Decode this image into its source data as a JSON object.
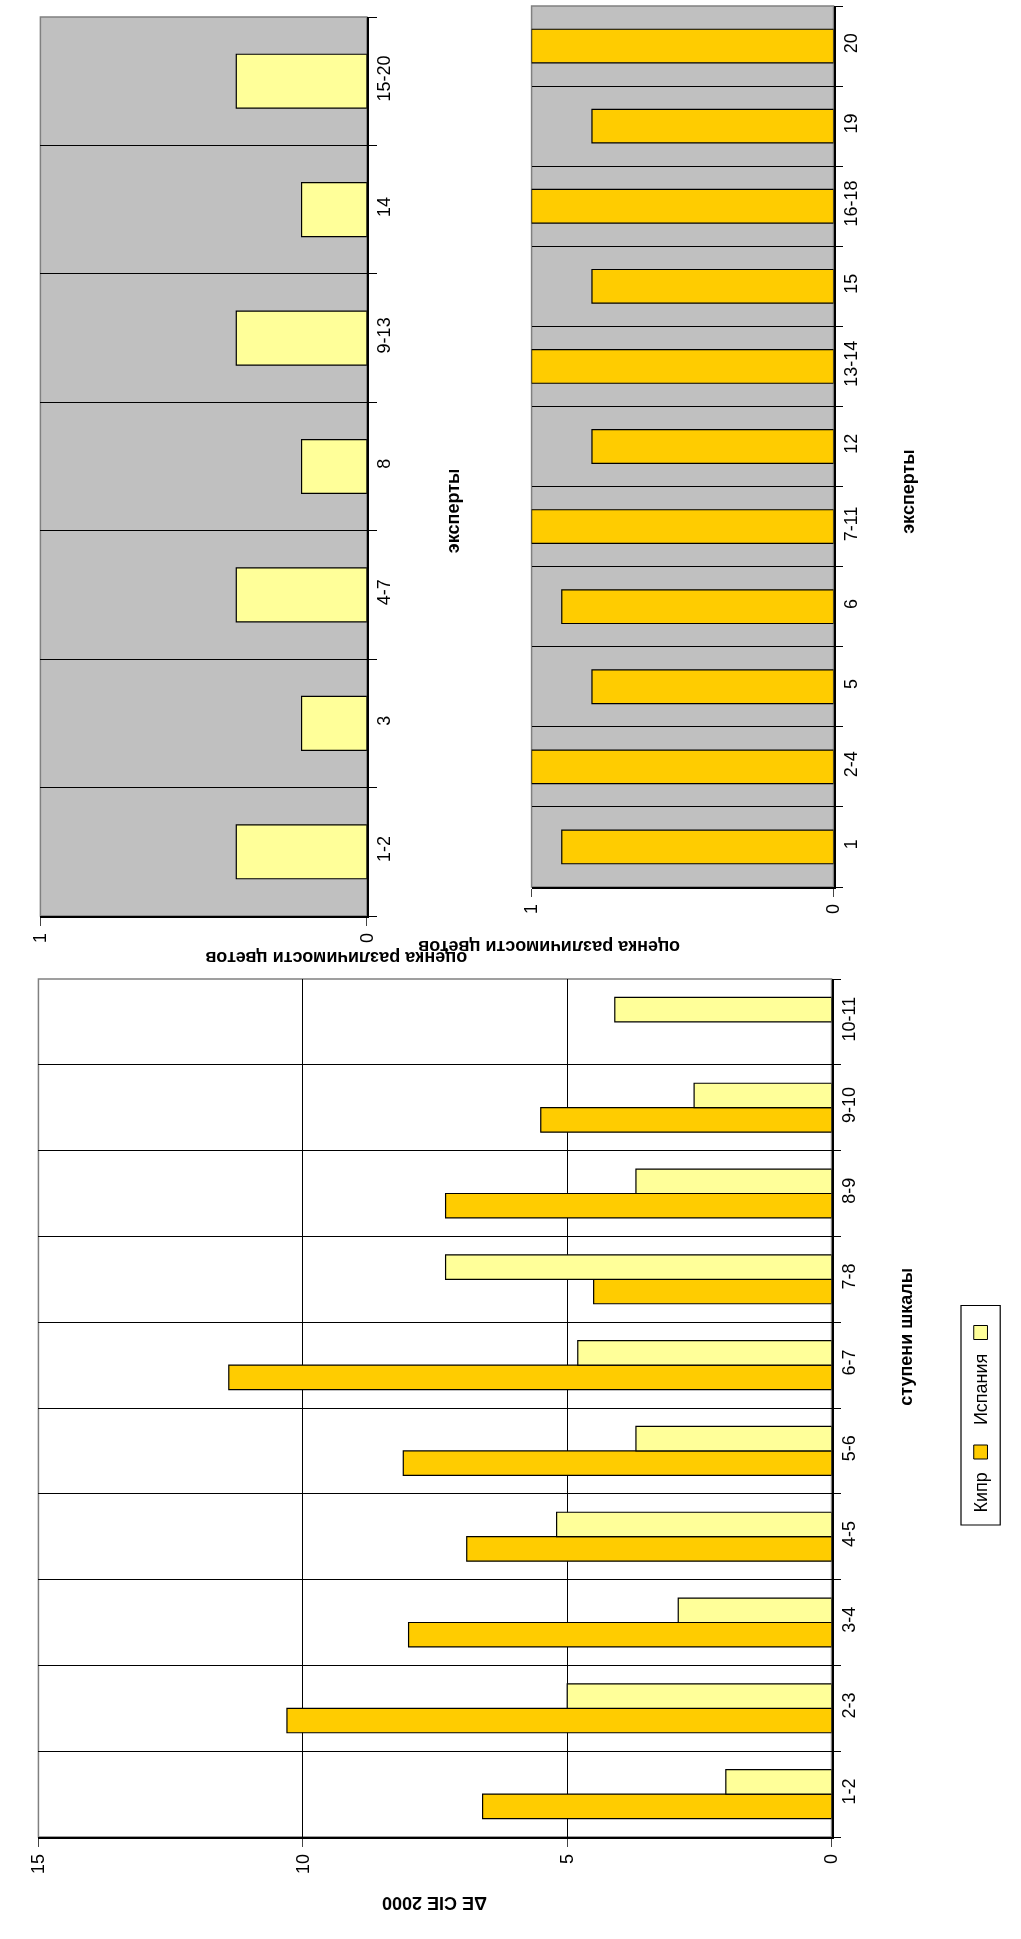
{
  "chart_data": [
    {
      "type": "bar",
      "orientation": "horizontal",
      "xlabel": "ΔE CIE 2000",
      "ylabel": "ступени шкалы",
      "categories": [
        "10-11",
        "9-10",
        "8-9",
        "7-8",
        "6-7",
        "5-6",
        "4-5",
        "3-4",
        "2-3",
        "1-2"
      ],
      "series": [
        {
          "name": "Кипр",
          "color": "#ffcc00",
          "values": [
            null,
            5.5,
            7.3,
            4.5,
            11.4,
            8.1,
            6.9,
            8.0,
            10.3,
            6.6
          ]
        },
        {
          "name": "Испания",
          "color": "#ffff99",
          "values": [
            4.1,
            2.6,
            3.7,
            7.3,
            4.8,
            3.7,
            5.2,
            2.9,
            5.0,
            2.0
          ]
        }
      ],
      "xlim": [
        15,
        0
      ],
      "xticks": [
        15,
        10,
        5,
        0
      ],
      "grid": true,
      "legend": "right"
    },
    {
      "type": "bar",
      "orientation": "horizontal",
      "xlabel": "оценка различимости цветов",
      "ylabel": "эксперты",
      "categories": [
        "15-20",
        "14",
        "9-13",
        "8",
        "4-7",
        "3",
        "1-2"
      ],
      "values": [
        0.4,
        0.2,
        0.4,
        0.2,
        0.4,
        0.2,
        0.4
      ],
      "color": "#ffff99",
      "xlim": [
        1,
        0
      ],
      "xticks": [
        1,
        0
      ],
      "grid": "y"
    },
    {
      "type": "bar",
      "orientation": "horizontal",
      "xlabel": "оценка различимости цветов",
      "ylabel": "эксперты",
      "categories": [
        "20",
        "19",
        "16-18",
        "15",
        "13-14",
        "12",
        "7-11",
        "6",
        "5",
        "2-4",
        "1"
      ],
      "values": [
        1,
        0.8,
        1,
        0.8,
        1,
        0.8,
        1,
        0.9,
        0.8,
        1,
        0.9
      ],
      "color": "#ffcc00",
      "xlim": [
        1,
        0
      ],
      "xticks": [
        1,
        0
      ],
      "grid": "y"
    }
  ]
}
